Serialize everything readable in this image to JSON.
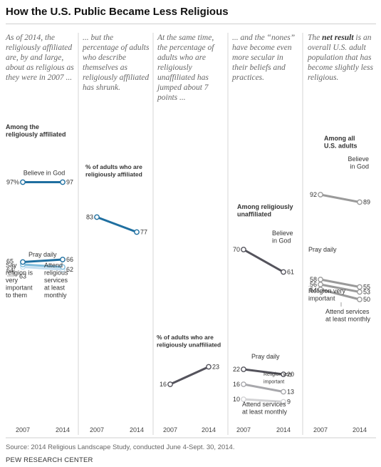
{
  "title": "How the U.S. Public Became Less Religious",
  "panels": [
    {
      "intro_pre": "",
      "intro_bold": "",
      "intro_post": "As of 2014, the religiously affiliated are, by and large, about as religious as they were in 2007 ..."
    },
    {
      "intro_pre": "",
      "intro_bold": "",
      "intro_post": "... but the percentage of adults who describe themselves as religiously affiliated has shrunk."
    },
    {
      "intro_pre": "",
      "intro_bold": "",
      "intro_post": "At the same time, the percentage of adults who are religiously unaffiliated has jumped about 7 points ..."
    },
    {
      "intro_pre": "",
      "intro_bold": "",
      "intro_post": "... and the “nones” have become even more secular in their beliefs and practices."
    },
    {
      "intro_pre": "The ",
      "intro_bold": "net result",
      "intro_post": " is an overall U.S. adult population that has become slightly less religious."
    }
  ],
  "source": "Source: 2014 Religious Landscape Study, conducted June 4-Sept. 30, 2014.",
  "org": "PEW RESEARCH CENTER",
  "colors": {
    "affiliated_dark": "#1f6fa0",
    "affiliated_light": "#7fbcdc",
    "affiliated_pale": "#c4def0",
    "unaffiliated_dark": "#54535c",
    "unaffiliated_mid": "#a8a8ac",
    "unaffiliated_light": "#d3d3d5",
    "overall": "#9a9a9a",
    "divider": "#d6d6d6"
  },
  "chart_data": [
    {
      "type": "line",
      "x": [
        "2007",
        "2014"
      ],
      "heading": "Among the religiously affiliated",
      "series": [
        {
          "name": "Believe in God",
          "values": [
            97,
            97
          ]
        },
        {
          "name": "Pray daily",
          "values": [
            65,
            66
          ]
        },
        {
          "name": "Say religion is very important to them",
          "values": [
            64,
            63
          ]
        },
        {
          "name": "Attend religious services at least monthly",
          "values": [
            63,
            62
          ]
        }
      ]
    },
    {
      "type": "line",
      "x": [
        "2007",
        "2014"
      ],
      "heading": "% of adults who are religiously affiliated",
      "series": [
        {
          "name": "",
          "values": [
            83,
            77
          ]
        }
      ]
    },
    {
      "type": "line",
      "x": [
        "2007",
        "2014"
      ],
      "heading": "% of adults who are religiously unaffiliated",
      "series": [
        {
          "name": "",
          "values": [
            16,
            23
          ]
        }
      ]
    },
    {
      "type": "line",
      "x": [
        "2007",
        "2014"
      ],
      "heading": "Among religiously unaffiliated",
      "series": [
        {
          "name": "Believe in God",
          "values": [
            70,
            61
          ]
        },
        {
          "name": "Pray daily",
          "values": [
            22,
            20
          ]
        },
        {
          "name": "Religion very important",
          "values": [
            16,
            13
          ]
        },
        {
          "name": "Attend services at least monthly",
          "values": [
            10,
            9
          ]
        }
      ]
    },
    {
      "type": "line",
      "x": [
        "2007",
        "2014"
      ],
      "heading": "Among all U.S. adults",
      "series": [
        {
          "name": "Believe in God",
          "values": [
            92,
            89
          ]
        },
        {
          "name": "Pray daily",
          "values": [
            58,
            55
          ]
        },
        {
          "name": "Religion very important",
          "values": [
            56,
            53
          ]
        },
        {
          "name": "Attend services at least monthly",
          "values": [
            54,
            50
          ]
        }
      ]
    }
  ]
}
